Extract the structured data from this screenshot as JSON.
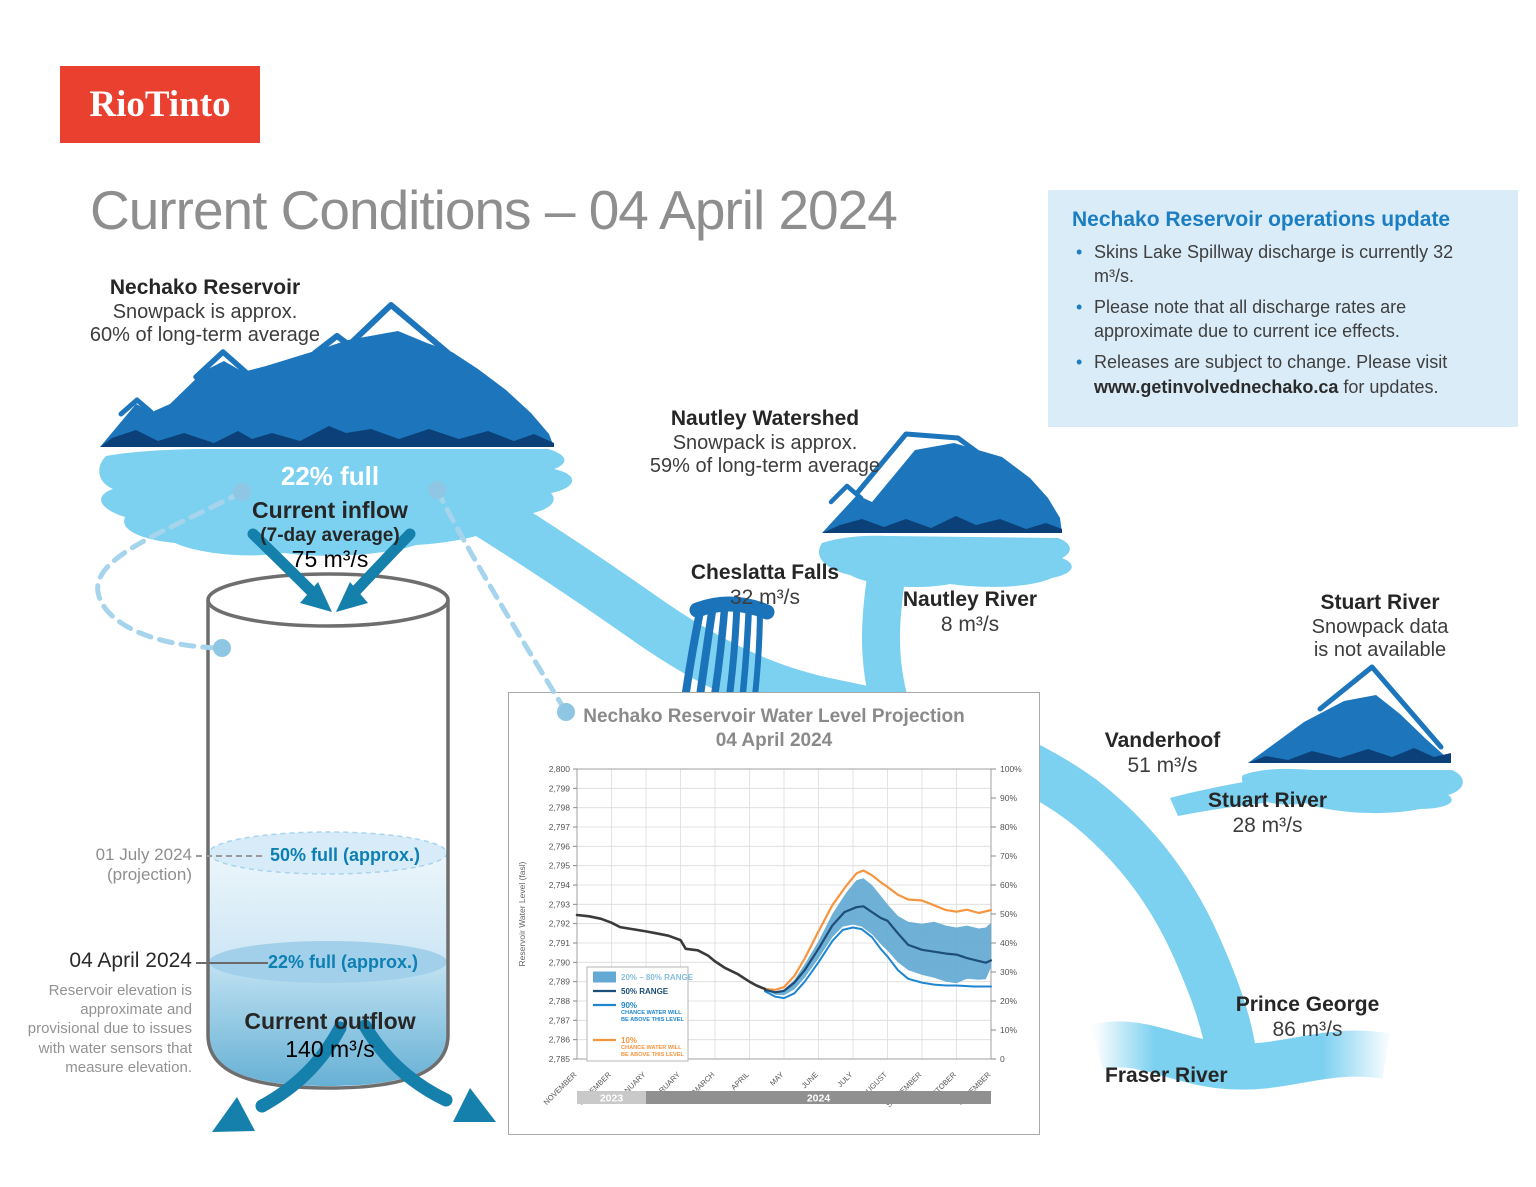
{
  "brand": {
    "logo_text": "RioTinto"
  },
  "page_title": "Current Conditions – 04 April 2024",
  "update_box": {
    "title": "Nechako Reservoir operations update",
    "bullets": [
      {
        "text": "Skins Lake Spillway discharge is currently 32 m³/s."
      },
      {
        "text": "Please note that all discharge rates are approximate due to current ice effects."
      },
      {
        "prefix": "Releases are subject to change. Please visit ",
        "bold": "www.getinvolvednechako.ca",
        "suffix": " for updates."
      }
    ]
  },
  "reservoir": {
    "name": "Nechako Reservoir",
    "snowpack_line1": "Snowpack is approx.",
    "snowpack_line2": "60% of long-term average",
    "fullness": "22% full",
    "inflow_label": "Current inflow",
    "inflow_sub": "(7-day average)",
    "inflow_value": "75 m³/s"
  },
  "cylinder": {
    "projection_date": "01 July 2024 (projection)",
    "projection_level": "50% full (approx.)",
    "current_date": "04 April 2024",
    "current_level": "22% full (approx.)",
    "elevation_note": "Reservoir elevation is approximate and provisional due to issues with water sensors that measure elevation.",
    "outflow_label": "Current outflow",
    "outflow_value": "140 m³/s"
  },
  "cheslatta": {
    "name": "Cheslatta Falls",
    "value": "32 m³/s"
  },
  "nautley": {
    "name": "Nautley Watershed",
    "snowpack_line1": "Snowpack is approx.",
    "snowpack_line2": "59% of long-term average",
    "river_name": "Nautley River",
    "river_value": "8 m³/s"
  },
  "stuart": {
    "name": "Stuart River",
    "snowpack_line1": "Snowpack data",
    "snowpack_line2": "is not available",
    "river_name": "Stuart River",
    "river_value": "28 m³/s"
  },
  "vanderhoof": {
    "name": "Vanderhoof",
    "value": "51 m³/s"
  },
  "prince_george": {
    "name": "Prince George",
    "value": "86 m³/s"
  },
  "fraser": {
    "name": "Fraser River"
  },
  "colors": {
    "brand_red": "#e9402f",
    "river_blue": "#7cd0f0",
    "mountain_blue": "#1d76bc",
    "mountain_dark": "#0c4078",
    "arrow_teal": "#1680ac",
    "accent_blue": "#1b7ec2",
    "infobox_bg": "#d9ecf8",
    "teal_label": "#0d7fb2"
  },
  "chart_data": {
    "type": "line",
    "title": "Nechako Reservoir Water Level Projection",
    "subtitle": "04 April 2024",
    "ylabel_left": "Reservoir Water Level (fasl)",
    "y_left_range": [
      2785,
      2800
    ],
    "y_left_tick_step": 1,
    "y_right_ticks": [
      "100%",
      "90%",
      "80%",
      "70%",
      "60%",
      "50%",
      "40%",
      "30%",
      "20%",
      "10%",
      "0"
    ],
    "x_ticks": [
      "NOVEMBER",
      "DECEMBER",
      "JANUARY",
      "FEBRUARY",
      "MARCH",
      "APRIL",
      "MAY",
      "JUNE",
      "JULY",
      "AUGUST",
      "SEPTEMBER",
      "OCTOBER",
      "NOVEMBER"
    ],
    "year_bands": [
      {
        "label": "2023",
        "from": 0,
        "to": 2,
        "color": "#c9c9c9"
      },
      {
        "label": "2024",
        "from": 2,
        "to": 12,
        "color": "#909090"
      }
    ],
    "legend": [
      {
        "label": "20% – 80% RANGE",
        "type": "band",
        "color": "#63a9d4",
        "text_color": "#85bede"
      },
      {
        "label": "50% RANGE",
        "type": "line",
        "color": "#1d4e79",
        "text_color": "#1d4e79"
      },
      {
        "label": "90%",
        "sublabel": [
          "CHANCE WATER WILL",
          "BE ABOVE THIS LEVEL"
        ],
        "type": "line",
        "color": "#1e86d0",
        "text_color": "#1e86d0"
      },
      {
        "label": "10%",
        "sublabel": [
          "CHANCE WATER WILL",
          "BE ABOVE THIS LEVEL"
        ],
        "type": "line",
        "color": "#f5953f",
        "text_color": "#f5953f"
      }
    ],
    "series": {
      "historical": {
        "name": "Recorded water level",
        "color": "#3a3a3a",
        "points": [
          [
            0,
            2792.45
          ],
          [
            0.35,
            2792.38
          ],
          [
            0.7,
            2792.25
          ],
          [
            1,
            2792.05
          ],
          [
            1.25,
            2791.82
          ],
          [
            1.6,
            2791.72
          ],
          [
            2,
            2791.6
          ],
          [
            2.3,
            2791.5
          ],
          [
            2.65,
            2791.38
          ],
          [
            3,
            2791.15
          ],
          [
            3.15,
            2790.7
          ],
          [
            3.5,
            2790.62
          ],
          [
            3.8,
            2790.35
          ],
          [
            4,
            2790.05
          ],
          [
            4.3,
            2789.7
          ],
          [
            4.65,
            2789.4
          ],
          [
            5,
            2789.0
          ],
          [
            5.2,
            2788.8
          ],
          [
            5.45,
            2788.62
          ]
        ]
      },
      "p10": {
        "name": "10% chance water will be above this level",
        "color": "#f5953f",
        "points": [
          [
            5.45,
            2788.62
          ],
          [
            5.75,
            2788.58
          ],
          [
            6,
            2788.72
          ],
          [
            6.3,
            2789.3
          ],
          [
            6.6,
            2790.2
          ],
          [
            7,
            2791.6
          ],
          [
            7.4,
            2792.95
          ],
          [
            7.8,
            2793.95
          ],
          [
            8.1,
            2794.6
          ],
          [
            8.3,
            2794.75
          ],
          [
            8.55,
            2794.5
          ],
          [
            8.8,
            2794.15
          ],
          [
            9,
            2793.9
          ],
          [
            9.3,
            2793.5
          ],
          [
            9.6,
            2793.25
          ],
          [
            10,
            2793.2
          ],
          [
            10.35,
            2792.95
          ],
          [
            10.7,
            2792.7
          ],
          [
            11,
            2792.62
          ],
          [
            11.3,
            2792.72
          ],
          [
            11.65,
            2792.55
          ],
          [
            12,
            2792.7
          ]
        ]
      },
      "p50": {
        "name": "50% range",
        "color": "#1d4e79",
        "points": [
          [
            5.45,
            2788.58
          ],
          [
            5.75,
            2788.45
          ],
          [
            6,
            2788.52
          ],
          [
            6.3,
            2788.95
          ],
          [
            6.6,
            2789.6
          ],
          [
            7,
            2790.7
          ],
          [
            7.4,
            2791.9
          ],
          [
            7.75,
            2792.6
          ],
          [
            8.1,
            2792.85
          ],
          [
            8.3,
            2792.9
          ],
          [
            8.55,
            2792.6
          ],
          [
            8.8,
            2792.3
          ],
          [
            9,
            2792.15
          ],
          [
            9.3,
            2791.5
          ],
          [
            9.6,
            2790.9
          ],
          [
            10,
            2790.65
          ],
          [
            10.35,
            2790.55
          ],
          [
            10.7,
            2790.45
          ],
          [
            11,
            2790.4
          ],
          [
            11.3,
            2790.22
          ],
          [
            11.7,
            2790.05
          ],
          [
            11.85,
            2789.98
          ],
          [
            12,
            2790.1
          ]
        ]
      },
      "p90": {
        "name": "90% chance water will be above this level",
        "color": "#1e86d0",
        "points": [
          [
            5.45,
            2788.5
          ],
          [
            5.75,
            2788.22
          ],
          [
            6,
            2788.15
          ],
          [
            6.3,
            2788.4
          ],
          [
            6.6,
            2789.0
          ],
          [
            7,
            2790.0
          ],
          [
            7.4,
            2791.1
          ],
          [
            7.7,
            2791.68
          ],
          [
            8,
            2791.8
          ],
          [
            8.25,
            2791.72
          ],
          [
            8.55,
            2791.3
          ],
          [
            8.8,
            2790.7
          ],
          [
            9,
            2790.3
          ],
          [
            9.3,
            2789.6
          ],
          [
            9.6,
            2789.15
          ],
          [
            10,
            2788.95
          ],
          [
            10.35,
            2788.85
          ],
          [
            10.7,
            2788.8
          ],
          [
            11,
            2788.8
          ],
          [
            11.5,
            2788.75
          ],
          [
            12,
            2788.75
          ]
        ]
      },
      "band_upper": {
        "name": "80% range edge",
        "color": "#63a9d4",
        "points": [
          [
            5.45,
            2788.6
          ],
          [
            5.75,
            2788.5
          ],
          [
            6,
            2788.6
          ],
          [
            6.3,
            2789.1
          ],
          [
            6.6,
            2789.9
          ],
          [
            7,
            2791.1
          ],
          [
            7.4,
            2792.5
          ],
          [
            7.8,
            2793.6
          ],
          [
            8.1,
            2794.25
          ],
          [
            8.3,
            2794.35
          ],
          [
            8.55,
            2794.0
          ],
          [
            8.8,
            2793.45
          ],
          [
            9,
            2793.0
          ],
          [
            9.3,
            2792.4
          ],
          [
            9.6,
            2792.1
          ],
          [
            10,
            2792.0
          ],
          [
            10.35,
            2792.1
          ],
          [
            10.7,
            2791.9
          ],
          [
            11,
            2791.8
          ],
          [
            11.3,
            2791.9
          ],
          [
            11.65,
            2791.75
          ],
          [
            11.85,
            2791.8
          ],
          [
            12,
            2792.05
          ]
        ]
      },
      "band_lower": {
        "name": "20% range edge",
        "color": "#63a9d4",
        "points": [
          [
            5.45,
            2788.55
          ],
          [
            5.75,
            2788.32
          ],
          [
            6,
            2788.3
          ],
          [
            6.3,
            2788.6
          ],
          [
            6.6,
            2789.2
          ],
          [
            7,
            2790.2
          ],
          [
            7.4,
            2791.3
          ],
          [
            7.7,
            2791.85
          ],
          [
            8,
            2791.95
          ],
          [
            8.25,
            2791.85
          ],
          [
            8.55,
            2791.45
          ],
          [
            8.8,
            2790.95
          ],
          [
            9,
            2790.6
          ],
          [
            9.3,
            2790.0
          ],
          [
            9.6,
            2789.6
          ],
          [
            10,
            2789.35
          ],
          [
            10.35,
            2789.2
          ],
          [
            10.7,
            2789.0
          ],
          [
            11,
            2788.92
          ],
          [
            11.3,
            2789.15
          ],
          [
            11.65,
            2789.1
          ],
          [
            11.85,
            2789.12
          ],
          [
            12,
            2789.75
          ]
        ]
      }
    }
  }
}
